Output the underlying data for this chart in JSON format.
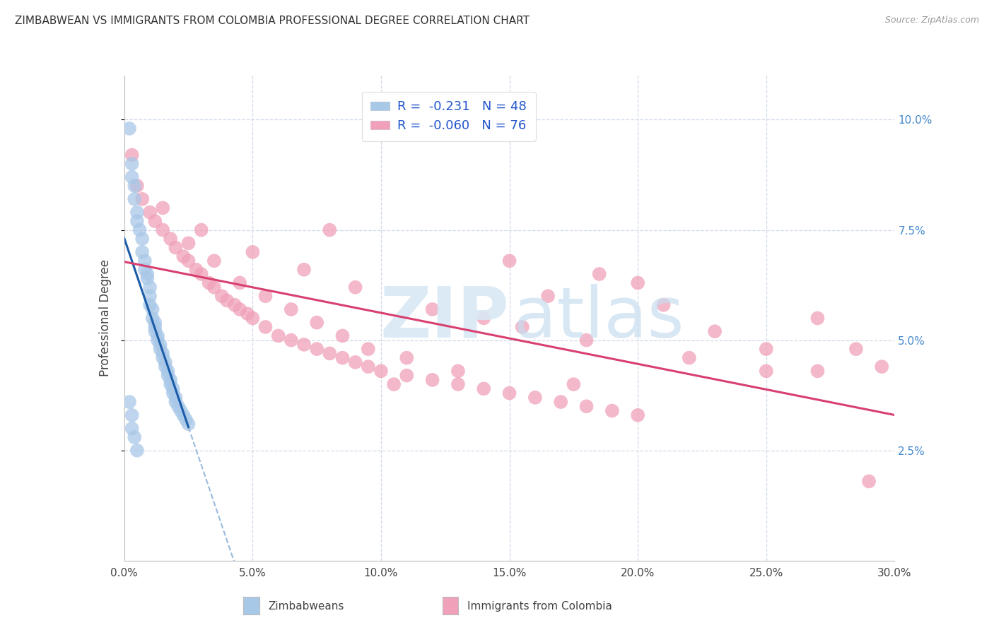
{
  "title": "ZIMBABWEAN VS IMMIGRANTS FROM COLOMBIA PROFESSIONAL DEGREE CORRELATION CHART",
  "source": "Source: ZipAtlas.com",
  "ylabel": "Professional Degree",
  "xlim": [
    0,
    0.3
  ],
  "ylim": [
    0,
    0.11
  ],
  "legend_r_blue": "-0.231",
  "legend_n_blue": "48",
  "legend_r_pink": "-0.060",
  "legend_n_pink": "76",
  "blue_color": "#a8c8e8",
  "pink_color": "#f0a0b8",
  "trend_blue_color": "#1a5ca8",
  "trend_pink_color": "#d84070",
  "grid_color": "#d0d8e8",
  "zimbabweans_x": [
    0.002,
    0.003,
    0.003,
    0.004,
    0.004,
    0.005,
    0.005,
    0.006,
    0.007,
    0.007,
    0.008,
    0.008,
    0.009,
    0.009,
    0.01,
    0.01,
    0.01,
    0.011,
    0.011,
    0.012,
    0.012,
    0.012,
    0.013,
    0.013,
    0.014,
    0.014,
    0.015,
    0.015,
    0.016,
    0.016,
    0.017,
    0.017,
    0.018,
    0.018,
    0.019,
    0.019,
    0.02,
    0.02,
    0.021,
    0.022,
    0.023,
    0.024,
    0.025,
    0.002,
    0.003,
    0.003,
    0.004,
    0.005
  ],
  "zimbabweans_y": [
    0.098,
    0.09,
    0.087,
    0.085,
    0.082,
    0.079,
    0.077,
    0.075,
    0.073,
    0.07,
    0.068,
    0.066,
    0.065,
    0.064,
    0.062,
    0.06,
    0.058,
    0.057,
    0.055,
    0.054,
    0.053,
    0.052,
    0.051,
    0.05,
    0.049,
    0.048,
    0.047,
    0.046,
    0.045,
    0.044,
    0.043,
    0.042,
    0.041,
    0.04,
    0.039,
    0.038,
    0.037,
    0.036,
    0.035,
    0.034,
    0.033,
    0.032,
    0.031,
    0.036,
    0.033,
    0.03,
    0.028,
    0.025
  ],
  "colombia_x": [
    0.003,
    0.005,
    0.007,
    0.01,
    0.012,
    0.015,
    0.018,
    0.02,
    0.023,
    0.025,
    0.028,
    0.03,
    0.033,
    0.035,
    0.038,
    0.04,
    0.043,
    0.045,
    0.048,
    0.05,
    0.055,
    0.06,
    0.065,
    0.07,
    0.075,
    0.08,
    0.085,
    0.09,
    0.095,
    0.1,
    0.11,
    0.12,
    0.13,
    0.14,
    0.15,
    0.16,
    0.17,
    0.18,
    0.19,
    0.2,
    0.025,
    0.035,
    0.045,
    0.055,
    0.065,
    0.075,
    0.085,
    0.095,
    0.11,
    0.13,
    0.015,
    0.03,
    0.05,
    0.07,
    0.09,
    0.12,
    0.155,
    0.18,
    0.22,
    0.25,
    0.08,
    0.15,
    0.2,
    0.27,
    0.285,
    0.295,
    0.21,
    0.23,
    0.25,
    0.27,
    0.185,
    0.165,
    0.14,
    0.105,
    0.175,
    0.29
  ],
  "colombia_y": [
    0.092,
    0.085,
    0.082,
    0.079,
    0.077,
    0.075,
    0.073,
    0.071,
    0.069,
    0.068,
    0.066,
    0.065,
    0.063,
    0.062,
    0.06,
    0.059,
    0.058,
    0.057,
    0.056,
    0.055,
    0.053,
    0.051,
    0.05,
    0.049,
    0.048,
    0.047,
    0.046,
    0.045,
    0.044,
    0.043,
    0.042,
    0.041,
    0.04,
    0.039,
    0.038,
    0.037,
    0.036,
    0.035,
    0.034,
    0.033,
    0.072,
    0.068,
    0.063,
    0.06,
    0.057,
    0.054,
    0.051,
    0.048,
    0.046,
    0.043,
    0.08,
    0.075,
    0.07,
    0.066,
    0.062,
    0.057,
    0.053,
    0.05,
    0.046,
    0.043,
    0.075,
    0.068,
    0.063,
    0.055,
    0.048,
    0.044,
    0.058,
    0.052,
    0.048,
    0.043,
    0.065,
    0.06,
    0.055,
    0.04,
    0.04,
    0.018
  ],
  "x_ticks": [
    0.0,
    0.05,
    0.1,
    0.15,
    0.2,
    0.25,
    0.3
  ],
  "x_tick_labels": [
    "0.0%",
    "5.0%",
    "10.0%",
    "15.0%",
    "20.0%",
    "25.0%",
    "30.0%"
  ],
  "y_ticks": [
    0.025,
    0.05,
    0.075,
    0.1
  ],
  "y_tick_labels": [
    "2.5%",
    "5.0%",
    "7.5%",
    "10.0%"
  ]
}
